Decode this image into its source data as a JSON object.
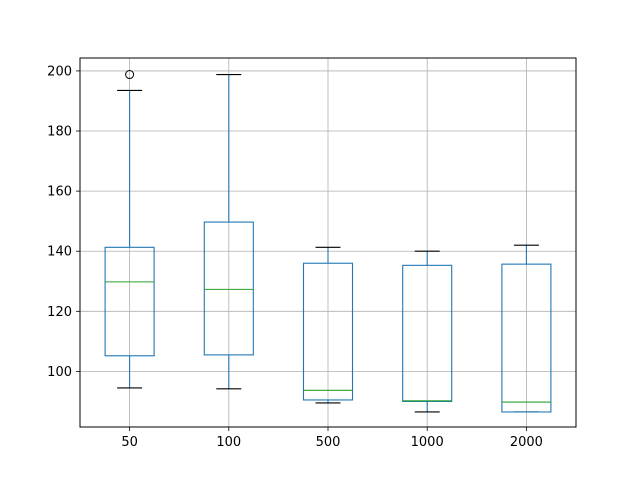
{
  "chart_data": {
    "type": "box",
    "categories": [
      "50",
      "100",
      "500",
      "1000",
      "2000"
    ],
    "boxes": [
      {
        "whisker_low": 94.5,
        "q1": 105.2,
        "median": 129.8,
        "q3": 141.3,
        "whisker_high": 193.5,
        "outliers": [
          198.8
        ]
      },
      {
        "whisker_low": 94.2,
        "q1": 105.5,
        "median": 127.3,
        "q3": 149.7,
        "whisker_high": 198.8,
        "outliers": []
      },
      {
        "whisker_low": 89.5,
        "q1": 90.5,
        "median": 93.7,
        "q3": 136.0,
        "whisker_high": 141.3,
        "outliers": []
      },
      {
        "whisker_low": 86.5,
        "q1": 90.0,
        "median": 90.2,
        "q3": 135.3,
        "whisker_high": 140.0,
        "outliers": []
      },
      {
        "whisker_low": 86.5,
        "q1": 86.5,
        "median": 89.8,
        "q3": 135.7,
        "whisker_high": 142.0,
        "outliers": []
      }
    ],
    "y_ticks": [
      100,
      120,
      140,
      160,
      180,
      200
    ],
    "ylim": [
      81.5,
      204.3
    ],
    "grid": true,
    "title": "",
    "xlabel": "",
    "ylabel": "",
    "colors": {
      "box": "#1f77b4",
      "median": "#2ca02c",
      "grid": "#b0b0b0",
      "outlier": "#000000"
    }
  }
}
